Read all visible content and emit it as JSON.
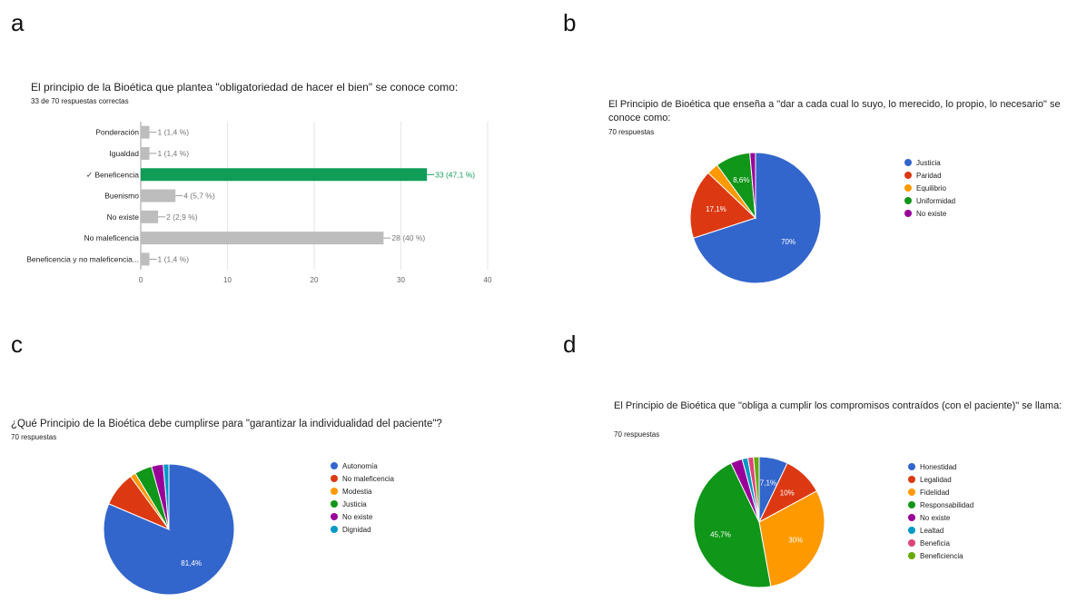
{
  "panels": {
    "a": {
      "letter": "a",
      "title": "El principio de la Bioética que plantea \"obligatoriedad de hacer el bien\" se conoce como:",
      "subtitle": "33 de 70 respuestas correctas"
    },
    "b": {
      "letter": "b",
      "title": "El Principio de Bioética que enseña a \"dar a cada cual lo suyo, lo merecido, lo propio, lo necesario\" se conoce como:",
      "subtitle": "70 respuestas"
    },
    "c": {
      "letter": "c",
      "title": "¿Qué Principio de la Bioética debe cumplirse para \"garantizar la individualidad del paciente\"?",
      "subtitle": "70 respuestas"
    },
    "d": {
      "letter": "d",
      "title": "El Principio de Bioética que \"obliga a cumplir los compromisos contraídos (con el paciente)\" se llama:",
      "subtitle": "70 respuestas"
    }
  },
  "chart_data": [
    {
      "type": "bar",
      "orientation": "horizontal",
      "categories": [
        "Ponderación",
        "Igualdad",
        "✓ Beneficencia",
        "Buenismo",
        "No existe",
        "No maleficencia",
        "Beneficencia y no maleficencia..."
      ],
      "values": [
        1,
        1,
        33,
        4,
        2,
        28,
        1
      ],
      "data_labels": [
        "1 (1,4 %)",
        "1 (1,4 %)",
        "33 (47,1 %)",
        "4 (5,7 %)",
        "2 (2,9 %)",
        "28 (40 %)",
        "1 (1,4 %)"
      ],
      "highlight_index": 2,
      "colors": {
        "default": "#bdbdbd",
        "highlight": "#0f9d58",
        "highlight_label": "#0f9d58",
        "label": "#757575"
      },
      "xlim": [
        0,
        40
      ],
      "xticks": [
        "0",
        "10",
        "20",
        "30",
        "40"
      ],
      "grid": true
    },
    {
      "type": "pie",
      "labels": [
        "Justicia",
        "Paridad",
        "Equilibrio",
        "Uniformidad",
        "No existe"
      ],
      "values": [
        70,
        17.1,
        2.9,
        8.6,
        1.4
      ],
      "colors": [
        "#3366cc",
        "#dc3912",
        "#ff9900",
        "#109618",
        "#990099"
      ],
      "slice_labels": [
        "70%",
        "17,1%",
        "",
        "8,6%",
        ""
      ],
      "legend_position": "right"
    },
    {
      "type": "pie",
      "labels": [
        "Autonomía",
        "No maleficencia",
        "Modestia",
        "Justicia",
        "No existe",
        "Dignidad"
      ],
      "values": [
        81.4,
        8.6,
        1.4,
        4.3,
        2.9,
        1.4
      ],
      "colors": [
        "#3366cc",
        "#dc3912",
        "#ff9900",
        "#109618",
        "#990099",
        "#0099c6"
      ],
      "slice_labels": [
        "81,4%",
        "",
        "",
        "",
        "",
        ""
      ],
      "legend_position": "right"
    },
    {
      "type": "pie",
      "labels": [
        "Honestidad",
        "Legalidad",
        "Fidelidad",
        "Responsabilidad",
        "No existe",
        "Lealtad",
        "Beneficia",
        "Beneficiencia"
      ],
      "values": [
        7.1,
        10,
        30,
        45.7,
        2.9,
        1.4,
        1.4,
        1.4
      ],
      "colors": [
        "#3366cc",
        "#dc3912",
        "#ff9900",
        "#109618",
        "#990099",
        "#0099c6",
        "#dd4477",
        "#66aa00"
      ],
      "slice_labels": [
        "7,1%",
        "10%",
        "30%",
        "45,7%",
        "",
        "",
        "",
        ""
      ],
      "legend_position": "right"
    }
  ]
}
